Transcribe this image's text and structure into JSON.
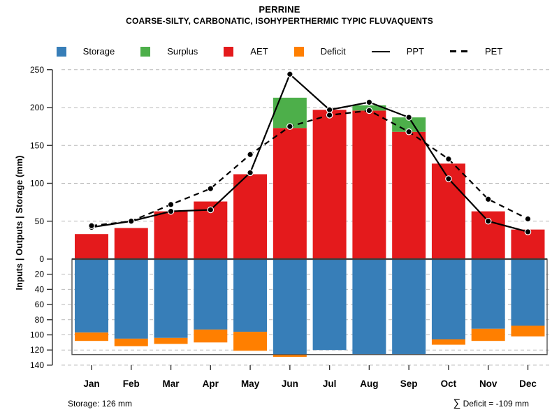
{
  "header": {
    "title": "PERRINE",
    "subtitle": "COARSE-SILTY, CARBONATIC, ISOHYPERTHERMIC TYPIC FLUVAQUENTS"
  },
  "legend": {
    "items": [
      {
        "label": "Storage",
        "type": "swatch",
        "color": "#377EB8"
      },
      {
        "label": "Surplus",
        "type": "swatch",
        "color": "#4DAF4A"
      },
      {
        "label": "AET",
        "type": "swatch",
        "color": "#E41A1C"
      },
      {
        "label": "Deficit",
        "type": "swatch",
        "color": "#FF7F00"
      },
      {
        "label": "PPT",
        "type": "line-solid",
        "color": "#000000"
      },
      {
        "label": "PET",
        "type": "line-dashed",
        "color": "#000000"
      }
    ]
  },
  "y_axis": {
    "label": "Inputs | Outputs | Storage  (mm)",
    "upper_ticks": [
      0,
      50,
      100,
      150,
      200,
      250
    ],
    "lower_ticks": [
      20,
      40,
      60,
      80,
      100,
      120,
      140
    ]
  },
  "footer": {
    "storage_note": "Storage: 126 mm",
    "deficit_sigma": "∑",
    "deficit_note": " Deficit = -109 mm"
  },
  "chart_data": {
    "type": "bar+line water balance (stacked bars up/down with PPT/PET lines)",
    "title": "PERRINE",
    "subtitle": "COARSE-SILTY, CARBONATIC, ISOHYPERTHERMIC TYPIC FLUVAQUENTS",
    "categories": [
      "Jan",
      "Feb",
      "Mar",
      "Apr",
      "May",
      "Jun",
      "Jul",
      "Aug",
      "Sep",
      "Oct",
      "Nov",
      "Dec"
    ],
    "series": [
      {
        "name": "AET",
        "role": "bar-up",
        "color": "#E41A1C",
        "values": [
          33,
          41,
          63,
          76,
          112,
          173,
          197,
          196,
          168,
          126,
          63,
          39
        ]
      },
      {
        "name": "Surplus",
        "role": "bar-up-stacked",
        "color": "#4DAF4A",
        "values": [
          0,
          0,
          0,
          0,
          0,
          40,
          0,
          7,
          19,
          0,
          0,
          0
        ]
      },
      {
        "name": "Storage",
        "role": "bar-down",
        "color": "#377EB8",
        "values": [
          97,
          105,
          104,
          93,
          96,
          126,
          120,
          126,
          126,
          106,
          92,
          88
        ]
      },
      {
        "name": "Deficit",
        "role": "bar-down-stacked",
        "color": "#FF7F00",
        "values": [
          11,
          10,
          8,
          17,
          25,
          3,
          0,
          0,
          0,
          7,
          16,
          14
        ]
      },
      {
        "name": "PPT",
        "role": "line-solid",
        "color": "#000000",
        "values": [
          42,
          50,
          63,
          65,
          114,
          244,
          197,
          207,
          187,
          106,
          50,
          36
        ]
      },
      {
        "name": "PET",
        "role": "line-dashed",
        "color": "#000000",
        "values": [
          44,
          50,
          72,
          93,
          138,
          175,
          190,
          196,
          168,
          132,
          79,
          53
        ]
      }
    ],
    "ylabel": "Inputs | Outputs | Storage  (mm)",
    "upper_axis_range": [
      0,
      250
    ],
    "lower_axis_range": [
      0,
      140
    ],
    "upper_tick_step": 50,
    "lower_tick_step": 20,
    "storage_capacity_mm": 126,
    "grid": "dashed horizontal gridlines",
    "legend_position": "top-center",
    "annotations": [
      "Storage: 126 mm",
      "∑ Deficit = -109 mm"
    ]
  }
}
